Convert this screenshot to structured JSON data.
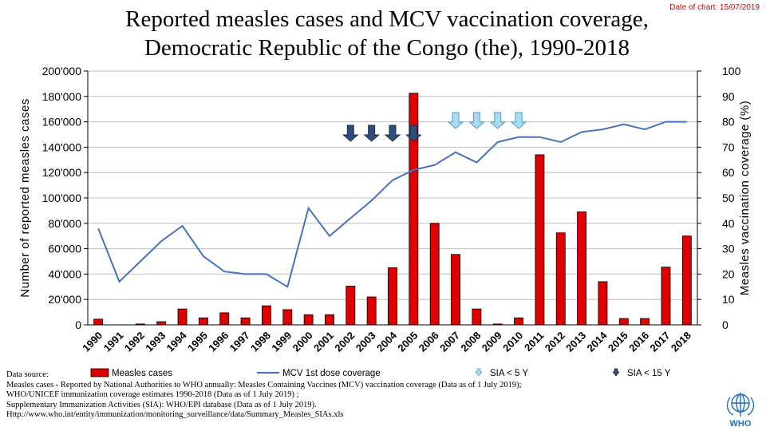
{
  "title_line1": "Reported measles cases and MCV vaccination coverage,",
  "title_line2": "Democratic Republic of the Congo (the), 1990-2018",
  "date_label": "Date of chart: 15/07/2019",
  "chart_data": {
    "type": "bar+line",
    "categories": [
      "1990",
      "1991",
      "1992",
      "1993",
      "1994",
      "1995",
      "1996",
      "1997",
      "1998",
      "1999",
      "2000",
      "2001",
      "2002",
      "2003",
      "2004",
      "2005",
      "2006",
      "2007",
      "2008",
      "2009",
      "2010",
      "2011",
      "2012",
      "2013",
      "2014",
      "2015",
      "2016",
      "2017",
      "2018"
    ],
    "series": [
      {
        "name": "Measles cases",
        "type": "bar",
        "axis": "left",
        "color": "#e00000",
        "values": [
          4500,
          0,
          700,
          2500,
          12500,
          5500,
          9500,
          5500,
          15000,
          12000,
          8000,
          8000,
          30500,
          22000,
          45000,
          182500,
          80000,
          55500,
          12500,
          700,
          5500,
          134000,
          72500,
          89000,
          34000,
          5000,
          5000,
          45500,
          70000
        ]
      },
      {
        "name": "MCV 1st dose coverage",
        "type": "line",
        "axis": "right",
        "color": "#4472c4",
        "values": [
          38,
          17,
          25,
          33,
          39,
          27,
          21,
          20,
          20,
          15,
          46,
          35,
          42,
          49,
          57,
          61,
          63,
          68,
          64,
          72,
          74,
          74,
          72,
          76,
          77,
          79,
          77,
          80,
          80
        ]
      }
    ],
    "sia_lt5_years": [
      "2007",
      "2008",
      "2009",
      "2010"
    ],
    "sia_lt15_years": [
      "2002",
      "2003",
      "2004",
      "2005"
    ],
    "ylabel": "Number of reported measles cases",
    "y2label": "Measles vaccination coverage (%)",
    "ylim": [
      0,
      200000
    ],
    "y2lim": [
      0,
      100
    ],
    "y_ticks": [
      "0",
      "20'000",
      "40'000",
      "60'000",
      "80'000",
      "100'000",
      "120'000",
      "140'000",
      "160'000",
      "180'000",
      "200'000"
    ],
    "y2_ticks": [
      "0",
      "10",
      "20",
      "30",
      "40",
      "50",
      "60",
      "70",
      "80",
      "90",
      "100"
    ],
    "legend": {
      "measles": "Measles cases",
      "mcv": "MCV 1st dose coverage",
      "sia5": "SIA < 5 Y",
      "sia15": "SIA < 15 Y"
    },
    "grid": true,
    "legend_position": "bottom"
  },
  "source": {
    "line1": "Data source:",
    "line2": "Measles cases - Reported by National Authorities to WHO annually: Measles Containing Vaccines (MCV) vaccination coverage (Data as of 1 July 2019);",
    "line3": "WHO/UNICEF immunization coverage estimates 1990-2018 (Data as of 1 July 2019) ;",
    "line4": "Supplementary Immunization Activities (SIA): WHO/EPI database (Data as of 1 July 2019).",
    "line5": "Http://www.who.int/entity/immunization/monitoring_surveillance/data/Summary_Measles_SIAs.xls"
  },
  "logo_text": "WHO"
}
